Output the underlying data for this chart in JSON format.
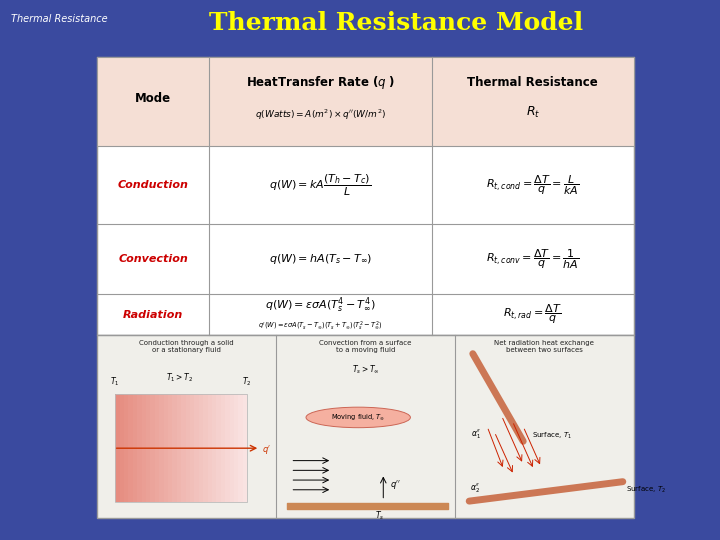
{
  "bg_color": "#3a4a9f",
  "slide_title": "Thermal Resistance Model",
  "slide_subtitle": "Thermal Resistance",
  "slide_title_color": "#ffff00",
  "slide_subtitle_color": "#ffffff",
  "slide_title_fontsize": 18,
  "slide_subtitle_fontsize": 7,
  "table_bg": "#ffffff",
  "table_header_bg": "#f5dfd5",
  "mode_color": "#cc0000",
  "bottom_titles": [
    "Conduction through a solid\nor a stationary fluid",
    "Convection from a surface\nto a moving fluid",
    "Net radiation heat exchange\nbetween two surfaces"
  ]
}
